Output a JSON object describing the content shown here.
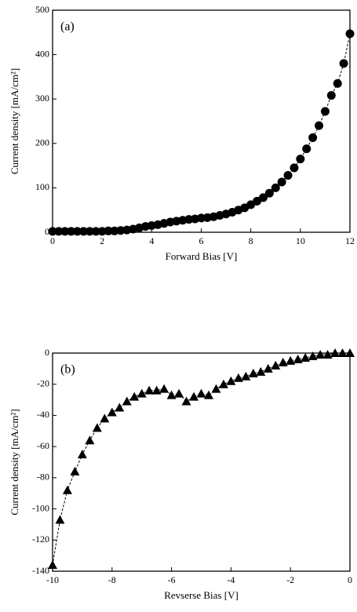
{
  "chart_data": [
    {
      "type": "line",
      "marker": "circle",
      "color": "#000000",
      "annotation": "(a)",
      "x_label": "Forward Bias [V]",
      "y_label": "Current density [mA/cm²]",
      "x": [
        0,
        0.25,
        0.5,
        0.75,
        1,
        1.25,
        1.5,
        1.75,
        2,
        2.25,
        2.5,
        2.75,
        3,
        3.25,
        3.5,
        3.75,
        4,
        4.25,
        4.5,
        4.75,
        5,
        5.25,
        5.5,
        5.75,
        6,
        6.25,
        6.5,
        6.75,
        7,
        7.25,
        7.5,
        7.75,
        8,
        8.25,
        8.5,
        8.75,
        9,
        9.25,
        9.5,
        9.75,
        10,
        10.25,
        10.5,
        10.75,
        11,
        11.25,
        11.5,
        11.75,
        12
      ],
      "values": [
        2,
        2,
        2,
        2,
        2,
        2,
        2,
        2,
        2,
        3,
        3,
        4,
        5,
        7,
        10,
        13,
        15,
        17,
        20,
        23,
        25,
        27,
        29,
        30,
        32,
        33,
        35,
        38,
        41,
        45,
        50,
        55,
        62,
        70,
        78,
        88,
        100,
        113,
        128,
        145,
        165,
        188,
        213,
        240,
        272,
        308,
        335,
        380,
        447
      ],
      "xlim": [
        0,
        12
      ],
      "xticks": [
        0,
        2,
        4,
        6,
        8,
        10,
        12
      ],
      "ylim": [
        0,
        500
      ],
      "yticks": [
        0,
        100,
        200,
        300,
        400,
        500
      ]
    },
    {
      "type": "line",
      "marker": "triangle",
      "color": "#000000",
      "annotation": "(b)",
      "x_label": "Revserse Bias [V]",
      "y_label": "Current density [mA/cm²]",
      "x": [
        -10,
        -9.75,
        -9.5,
        -9.25,
        -9,
        -8.75,
        -8.5,
        -8.25,
        -8,
        -7.75,
        -7.5,
        -7.25,
        -7,
        -6.75,
        -6.5,
        -6.25,
        -6,
        -5.75,
        -5.5,
        -5.25,
        -5,
        -4.75,
        -4.5,
        -4.25,
        -4,
        -3.75,
        -3.5,
        -3.25,
        -3,
        -2.75,
        -2.5,
        -2.25,
        -2,
        -1.75,
        -1.5,
        -1.25,
        -1,
        -0.75,
        -0.5,
        -0.25,
        0
      ],
      "values": [
        -136,
        -107,
        -88,
        -76,
        -65,
        -56,
        -48,
        -42,
        -38,
        -35,
        -31,
        -28,
        -26,
        -24,
        -24,
        -23,
        -27,
        -26,
        -31,
        -28,
        -26,
        -27,
        -23,
        -20,
        -18,
        -16,
        -15,
        -13,
        -12,
        -10,
        -8,
        -6,
        -5,
        -4,
        -3,
        -2,
        -1,
        -1,
        0,
        0,
        0
      ],
      "xlim": [
        -10,
        0
      ],
      "xticks": [
        -10,
        -8,
        -6,
        -4,
        -2,
        0
      ],
      "ylim": [
        -140,
        0
      ],
      "yticks": [
        -140,
        -120,
        -100,
        -80,
        -60,
        -40,
        -20,
        0
      ]
    }
  ]
}
